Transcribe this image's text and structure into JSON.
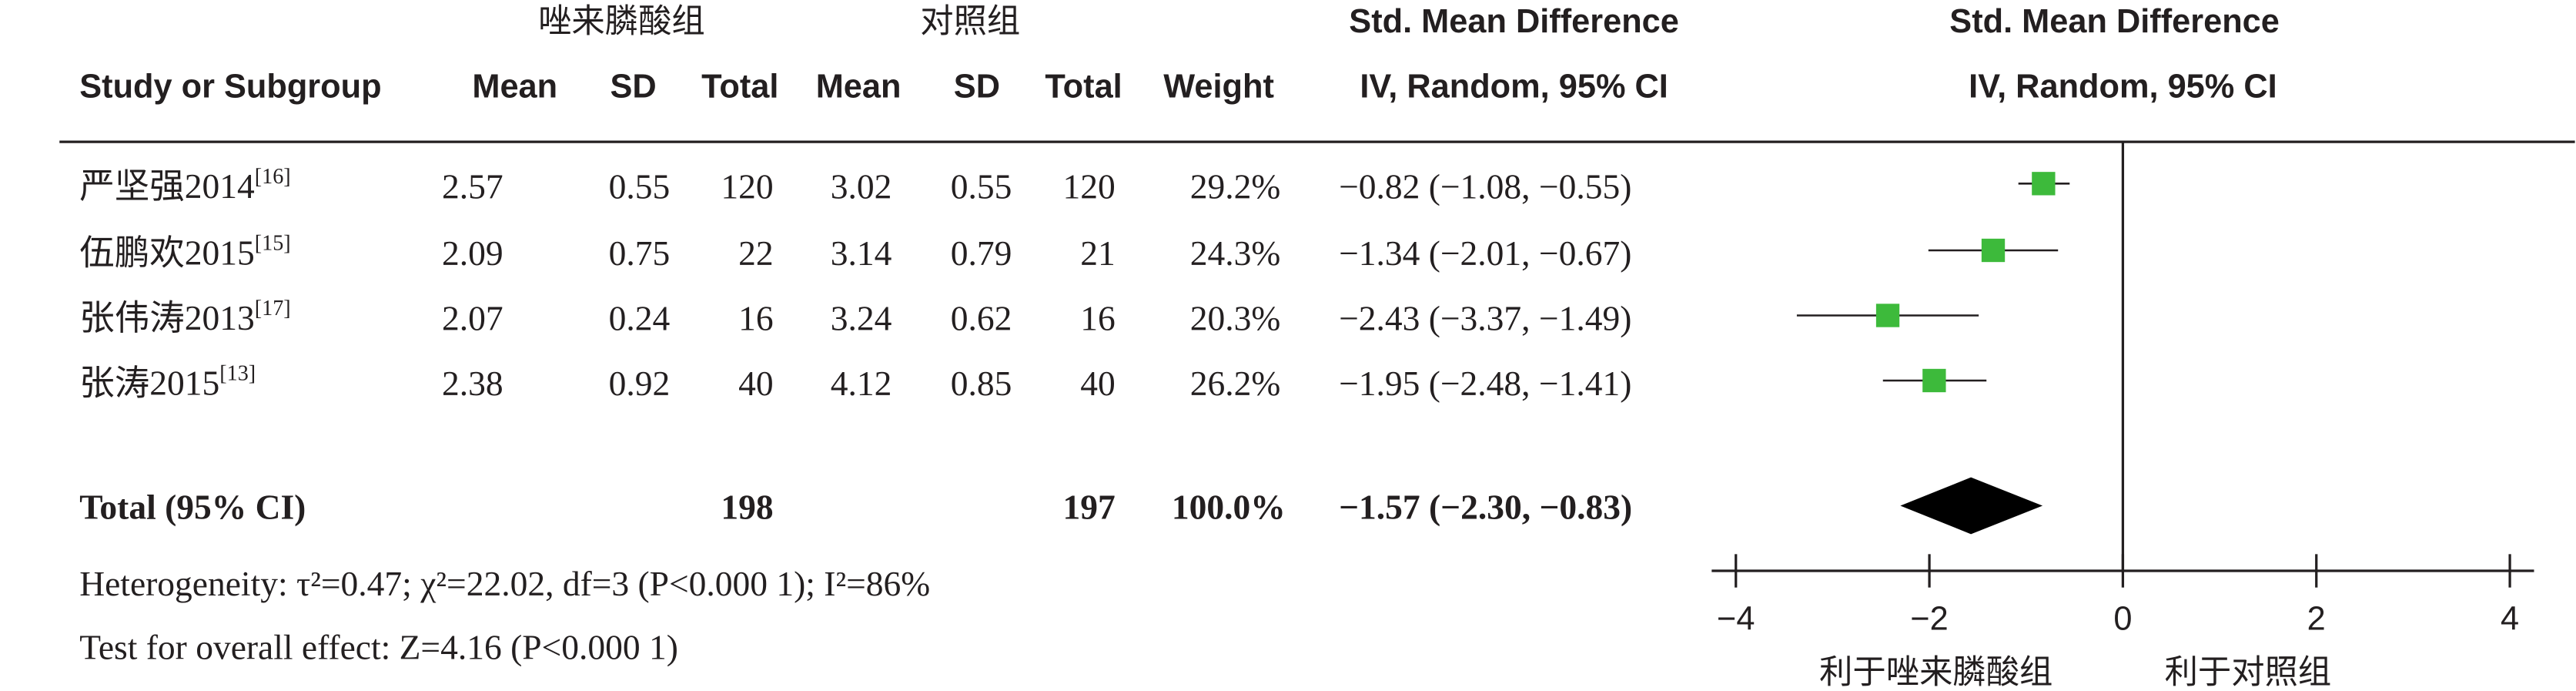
{
  "chart_data": {
    "type": "forest",
    "group_labels": [
      "唑来膦酸组",
      "对照组"
    ],
    "effect_title": "Std. Mean Difference",
    "effect_method": "IV, Random, 95% CI",
    "columns": [
      "Study or Subgroup",
      "Mean",
      "SD",
      "Total",
      "Mean",
      "SD",
      "Total",
      "Weight"
    ],
    "studies": [
      {
        "name": "严坚强2014",
        "ref": "[16]",
        "exp": {
          "mean": 2.57,
          "sd": 0.55,
          "total": 120
        },
        "ctl": {
          "mean": 3.02,
          "sd": 0.55,
          "total": 120
        },
        "weight": 29.2,
        "weight_label": "29.2%",
        "smd": -0.82,
        "lower": -1.08,
        "upper": -0.55,
        "ci_label": "−0.82 (−1.08, −0.55)"
      },
      {
        "name": "伍鹏欢2015",
        "ref": "[15]",
        "exp": {
          "mean": 2.09,
          "sd": 0.75,
          "total": 22
        },
        "ctl": {
          "mean": 3.14,
          "sd": 0.79,
          "total": 21
        },
        "weight": 24.3,
        "weight_label": "24.3%",
        "smd": -1.34,
        "lower": -2.01,
        "upper": -0.67,
        "ci_label": "−1.34 (−2.01, −0.67)"
      },
      {
        "name": "张伟涛2013",
        "ref": "[17]",
        "exp": {
          "mean": 2.07,
          "sd": 0.24,
          "total": 16
        },
        "ctl": {
          "mean": 3.24,
          "sd": 0.62,
          "total": 16
        },
        "weight": 20.3,
        "weight_label": "20.3%",
        "smd": -2.43,
        "lower": -3.37,
        "upper": -1.49,
        "ci_label": "−2.43 (−3.37, −1.49)"
      },
      {
        "name": "张涛2015",
        "ref": "[13]",
        "exp": {
          "mean": 2.38,
          "sd": 0.92,
          "total": 40
        },
        "ctl": {
          "mean": 4.12,
          "sd": 0.85,
          "total": 40
        },
        "weight": 26.2,
        "weight_label": "26.2%",
        "smd": -1.95,
        "lower": -2.48,
        "upper": -1.41,
        "ci_label": "−1.95 (−2.48, −1.41)"
      }
    ],
    "total": {
      "label": "Total (95% CI)",
      "exp_total": 198,
      "ctl_total": 197,
      "weight": 100,
      "weight_label": "100.0%",
      "smd": -1.57,
      "lower": -2.3,
      "upper": -0.83,
      "ci_label": "−1.57 (−2.30, −0.83)"
    },
    "heterogeneity": "Heterogeneity: τ²=0.47; χ²=22.02, df=3 (P<0.000 1); I²=86%",
    "overall_effect": "Test for overall effect: Z=4.16 (P<0.000 1)",
    "xlim": [
      -4.25,
      4.25
    ],
    "xticks": [
      {
        "value": -4,
        "label": "−4"
      },
      {
        "value": -2,
        "label": "−2"
      },
      0,
      2,
      4
    ],
    "x_labels": [
      "利于唑来膦酸组",
      "利于对照组"
    ],
    "marker_color": "#3dba3b"
  }
}
